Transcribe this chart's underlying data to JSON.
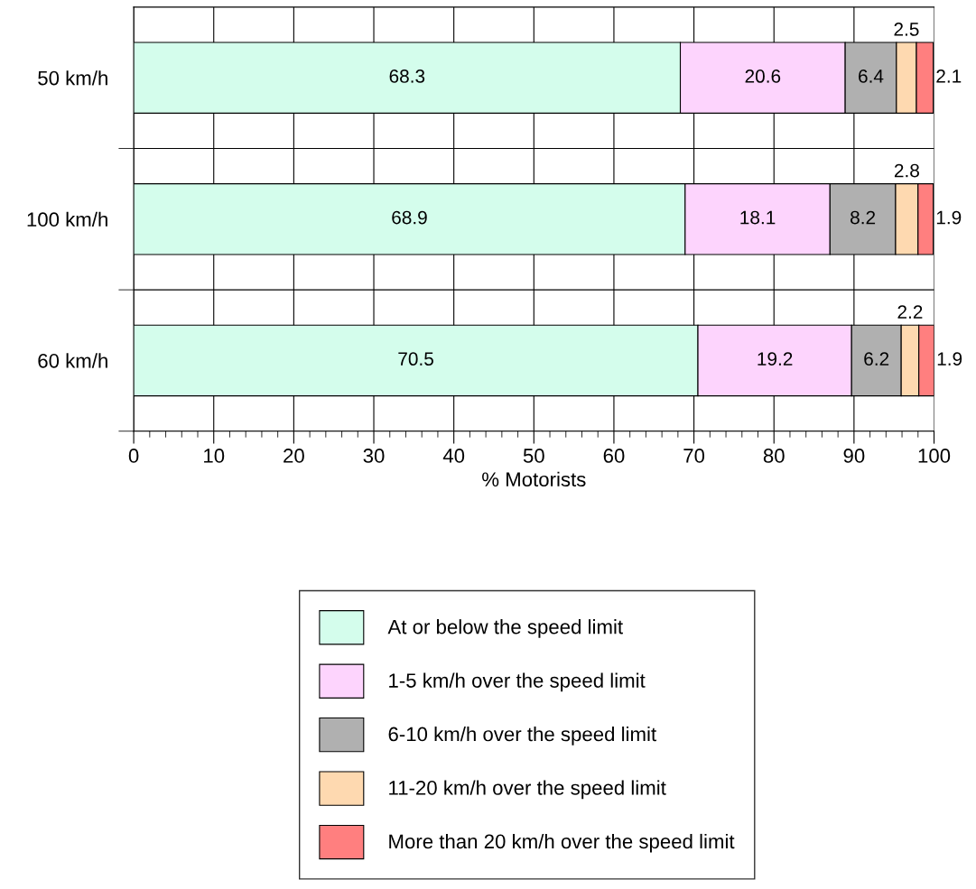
{
  "chart_data": {
    "type": "bar",
    "orientation": "horizontal",
    "stacked": true,
    "categories": [
      "50 km/h",
      "100 km/h",
      "60 km/h"
    ],
    "series": [
      {
        "name": "At or below the speed limit",
        "color": "#d4fdec",
        "values": [
          68.3,
          68.9,
          70.5
        ]
      },
      {
        "name": "1-5 km/h over the speed limit",
        "color": "#fdd4fd",
        "values": [
          20.6,
          18.1,
          19.2
        ]
      },
      {
        "name": "6-10 km/h over the speed limit",
        "color": "#b0b0b0",
        "values": [
          6.4,
          8.2,
          6.2
        ]
      },
      {
        "name": "11-20 km/h over the speed limit",
        "color": "#fed9b0",
        "values": [
          2.5,
          2.8,
          2.2
        ]
      },
      {
        "name": "More than 20 km/h over the speed limit",
        "color": "#ff7f7f",
        "values": [
          2.1,
          1.9,
          1.9
        ]
      }
    ],
    "xlabel": "% Motorists",
    "xlim": [
      0,
      100
    ],
    "xticks": [
      0,
      10,
      20,
      30,
      40,
      50,
      60,
      70,
      80,
      90,
      100
    ],
    "data_labels": true,
    "grid": true,
    "legend": "bottom"
  }
}
